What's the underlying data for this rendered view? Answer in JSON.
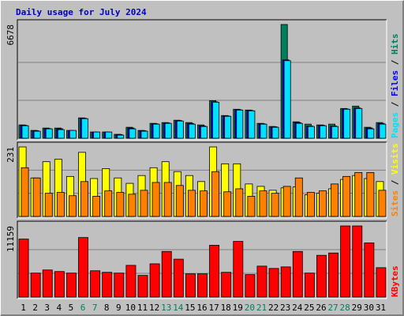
{
  "title": "Daily usage for July 2024",
  "legend_separator": " / ",
  "chart_data": [
    {
      "type": "bar",
      "ylim": [
        0,
        6678
      ],
      "yticks": [
        6678
      ],
      "grid_divisions": 3,
      "series": [
        {
          "name": "Hits",
          "color": "#00805c",
          "values": [
            782,
            460,
            598,
            598,
            460,
            1196,
            368,
            368,
            230,
            644,
            460,
            874,
            920,
            1058,
            920,
            782,
            2208,
            1334,
            1702,
            1656,
            874,
            690,
            6678,
            966,
            828,
            782,
            828,
            1748,
            1886,
            644,
            920
          ]
        },
        {
          "name": "Files",
          "color": "#0000ff",
          "values": [
            760,
            440,
            570,
            560,
            450,
            1170,
            360,
            360,
            220,
            600,
            440,
            850,
            900,
            1040,
            870,
            720,
            2140,
            1310,
            1680,
            1630,
            850,
            670,
            4600,
            920,
            720,
            760,
            720,
            1720,
            1780,
            600,
            870
          ]
        },
        {
          "name": "Pages",
          "color": "#00e0ff",
          "values": [
            736,
            414,
            552,
            506,
            460,
            1150,
            368,
            368,
            184,
            552,
            414,
            828,
            874,
            1012,
            828,
            690,
            2116,
            1288,
            1656,
            1610,
            828,
            644,
            4554,
            874,
            690,
            736,
            690,
            1702,
            1748,
            552,
            828
          ]
        }
      ]
    },
    {
      "type": "bar",
      "ylim": [
        0,
        231
      ],
      "yticks": [
        231
      ],
      "grid_divisions": 3,
      "series": [
        {
          "name": "Visits",
          "color": "#ffff00",
          "values": [
            231,
            128,
            182,
            190,
            133,
            213,
            126,
            159,
            128,
            110,
            136,
            162,
            182,
            149,
            136,
            116,
            231,
            175,
            175,
            108,
            100,
            87,
            95,
            98,
            72,
            77,
            92,
            123,
            136,
            126,
            116
          ]
        },
        {
          "name": "Sites",
          "color": "#ff8000",
          "values": [
            162,
            128,
            77,
            80,
            69,
            116,
            67,
            85,
            80,
            74,
            87,
            113,
            113,
            103,
            87,
            85,
            149,
            82,
            92,
            67,
            85,
            77,
            100,
            128,
            80,
            85,
            108,
            133,
            146,
            146,
            87
          ]
        }
      ]
    },
    {
      "type": "bar",
      "ylim": [
        0,
        11159
      ],
      "yticks": [
        11159
      ],
      "grid_divisions": 3,
      "categories": [
        "1",
        "2",
        "3",
        "4",
        "5",
        "6",
        "7",
        "8",
        "9",
        "10",
        "11",
        "12",
        "13",
        "14",
        "15",
        "16",
        "17",
        "18",
        "19",
        "20",
        "21",
        "22",
        "23",
        "24",
        "25",
        "26",
        "27",
        "28",
        "29",
        "30",
        "31"
      ],
      "category_colors": [
        "#000000",
        "#000000",
        "#000000",
        "#000000",
        "#000000",
        "#00805c",
        "#00805c",
        "#000000",
        "#000000",
        "#000000",
        "#000000",
        "#000000",
        "#00805c",
        "#00805c",
        "#000000",
        "#000000",
        "#000000",
        "#000000",
        "#000000",
        "#00805c",
        "#00805c",
        "#000000",
        "#000000",
        "#000000",
        "#000000",
        "#000000",
        "#00805c",
        "#00805c",
        "#000000",
        "#000000",
        "#000000"
      ],
      "series": [
        {
          "name": "KBytes",
          "color": "#ff0000",
          "values": [
            9098,
            3760,
            4246,
            4003,
            3760,
            9340,
            4124,
            3882,
            3760,
            4973,
            3396,
            5216,
            7157,
            5944,
            3639,
            3639,
            8127,
            3882,
            8734,
            3518,
            4852,
            4488,
            4731,
            7157,
            3760,
            6550,
            6914,
            11159,
            11159,
            8491,
            4609
          ]
        }
      ]
    }
  ]
}
